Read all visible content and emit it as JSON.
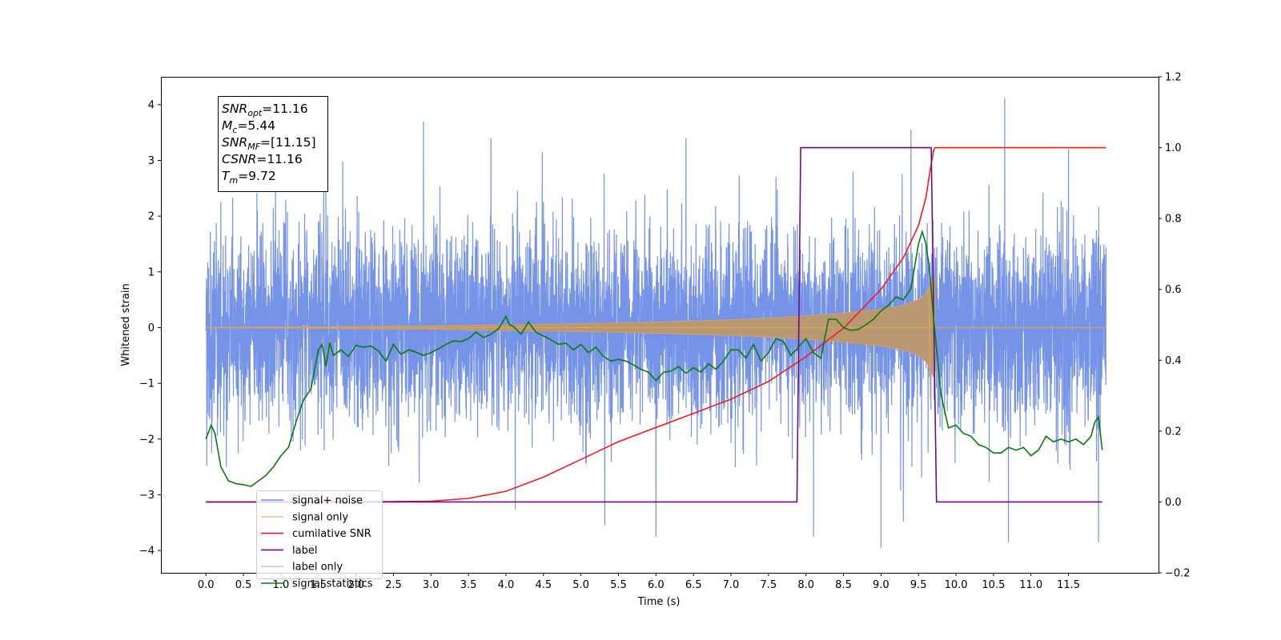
{
  "chart_data": {
    "type": "line",
    "title": "",
    "xlabel": "Time (s)",
    "ylabel": "Whitened strain",
    "xlim": [
      -0.6,
      12.7
    ],
    "ylim": [
      -4.4,
      4.5
    ],
    "ylim_right": [
      -0.2,
      1.2
    ],
    "x_ticks": [
      "0.0",
      "0.5",
      "1.0",
      "1.5",
      "2.0",
      "2.5",
      "3.0",
      "3.5",
      "4.0",
      "4.5",
      "5.0",
      "5.5",
      "6.0",
      "6.5",
      "7.0",
      "7.5",
      "8.0",
      "8.5",
      "9.0",
      "9.5",
      "10.0",
      "10.5",
      "11.0",
      "11.5"
    ],
    "y_ticks_left": [
      "4",
      "3",
      "2",
      "1",
      "0",
      "−1",
      "−2",
      "−3",
      "−4"
    ],
    "y_ticks_right": [
      "1.2",
      "1.0",
      "0.8",
      "0.6",
      "0.4",
      "0.2",
      "0.0",
      "−0.2"
    ],
    "grid": false,
    "legend_position": "lower-left",
    "annotation": [
      {
        "sym": "SNR",
        "sub": "opt",
        "val": "=11.16"
      },
      {
        "sym": "M",
        "sub": "c",
        "val": "=5.44"
      },
      {
        "sym": "SNR",
        "sub": "MF",
        "val": "=[11.15]"
      },
      {
        "sym": "CSNR",
        "sub": "",
        "val": "=11.16"
      },
      {
        "sym": "T",
        "sub": "m",
        "val": "=9.72"
      }
    ],
    "series": [
      {
        "name": "signal+ noise",
        "axis": "left",
        "color": "#6f8ee6",
        "x_range": [
          0.0,
          12.0
        ],
        "typical_amplitude": 1.8,
        "peak_values": [
          [
            0.2,
            2.25
          ],
          [
            1.6,
            2.7
          ],
          [
            2.9,
            3.7
          ],
          [
            3.8,
            3.4
          ],
          [
            6.4,
            3.4
          ],
          [
            9.0,
            3.5
          ],
          [
            9.4,
            3.55
          ],
          [
            10.65,
            4.12
          ],
          [
            11.5,
            3.2
          ],
          [
            6.0,
            -3.75
          ],
          [
            8.1,
            -3.75
          ],
          [
            9.0,
            -3.95
          ],
          [
            10.7,
            -3.85
          ],
          [
            11.9,
            -3.85
          ]
        ]
      },
      {
        "name": "signal only",
        "axis": "left",
        "color": "#d9a45a",
        "envelope": {
          "x": [
            0,
            1,
            2,
            3,
            4,
            5,
            6,
            7,
            7.5,
            8,
            8.5,
            9,
            9.3,
            9.5,
            9.6,
            9.65,
            9.7
          ],
          "amp": [
            0.005,
            0.01,
            0.02,
            0.03,
            0.05,
            0.07,
            0.1,
            0.14,
            0.17,
            0.21,
            0.26,
            0.33,
            0.4,
            0.5,
            0.62,
            0.72,
            0.9
          ]
        },
        "merger_time": 9.72
      },
      {
        "name": "cumilative SNR",
        "axis": "right",
        "color": "#ee1c1c",
        "x": [
          0,
          2,
          3,
          3.5,
          4,
          4.5,
          5,
          5.5,
          6,
          6.5,
          7,
          7.5,
          8,
          8.5,
          9,
          9.3,
          9.5,
          9.6,
          9.65,
          9.7,
          9.72,
          12.0
        ],
        "values": [
          0,
          0,
          0.002,
          0.01,
          0.03,
          0.07,
          0.12,
          0.17,
          0.21,
          0.25,
          0.29,
          0.34,
          0.41,
          0.49,
          0.6,
          0.69,
          0.78,
          0.86,
          0.93,
          0.99,
          1.0,
          1.0
        ]
      },
      {
        "name": "label",
        "axis": "right",
        "color": "#6d0f7b",
        "x": [
          0,
          7.88,
          7.93,
          9.67,
          9.74,
          11.95
        ],
        "values": [
          0,
          0,
          1,
          1,
          0,
          0
        ]
      },
      {
        "name": "label only",
        "axis": "right",
        "color": "#c8c8c8",
        "x": [],
        "values": []
      },
      {
        "name": "signal statistics",
        "axis": "left",
        "color": "#0b7a0b",
        "x": [
          0,
          0.07,
          0.12,
          0.2,
          0.3,
          0.4,
          0.5,
          0.6,
          0.7,
          0.8,
          0.9,
          1.0,
          1.1,
          1.2,
          1.3,
          1.4,
          1.5,
          1.55,
          1.6,
          1.65,
          1.7,
          1.8,
          1.9,
          2.0,
          2.1,
          2.2,
          2.3,
          2.4,
          2.5,
          2.6,
          2.7,
          2.8,
          2.9,
          3.0,
          3.1,
          3.2,
          3.3,
          3.4,
          3.5,
          3.6,
          3.7,
          3.8,
          3.9,
          4.0,
          4.05,
          4.1,
          4.2,
          4.3,
          4.4,
          4.45,
          4.5,
          4.6,
          4.7,
          4.8,
          4.9,
          5.0,
          5.1,
          5.2,
          5.3,
          5.4,
          5.5,
          5.6,
          5.7,
          5.8,
          5.9,
          6.0,
          6.1,
          6.2,
          6.3,
          6.4,
          6.5,
          6.6,
          6.7,
          6.8,
          6.9,
          7.0,
          7.1,
          7.2,
          7.3,
          7.4,
          7.5,
          7.6,
          7.7,
          7.8,
          7.9,
          8.0,
          8.1,
          8.2,
          8.3,
          8.4,
          8.5,
          8.6,
          8.7,
          8.8,
          8.9,
          9.0,
          9.1,
          9.2,
          9.3,
          9.4,
          9.5,
          9.55,
          9.6,
          9.65,
          9.7,
          9.8,
          9.9,
          10.0,
          10.1,
          10.2,
          10.3,
          10.4,
          10.5,
          10.6,
          10.7,
          10.8,
          10.9,
          11.0,
          11.1,
          11.2,
          11.3,
          11.4,
          11.5,
          11.6,
          11.7,
          11.8,
          11.85,
          11.9,
          11.95
        ],
        "values": [
          -2.0,
          -1.75,
          -1.9,
          -2.5,
          -2.75,
          -2.8,
          -2.82,
          -2.85,
          -2.75,
          -2.65,
          -2.5,
          -2.3,
          -2.15,
          -1.7,
          -1.3,
          -1.1,
          -0.4,
          -0.3,
          -0.7,
          -0.27,
          -0.5,
          -0.4,
          -0.52,
          -0.32,
          -0.35,
          -0.33,
          -0.42,
          -0.6,
          -0.3,
          -0.48,
          -0.4,
          -0.44,
          -0.5,
          -0.45,
          -0.38,
          -0.3,
          -0.24,
          -0.25,
          -0.2,
          -0.08,
          -0.18,
          -0.12,
          -0.02,
          0.2,
          0.05,
          0.02,
          -0.12,
          0.1,
          -0.08,
          -0.12,
          -0.15,
          -0.22,
          -0.3,
          -0.28,
          -0.4,
          -0.3,
          -0.45,
          -0.35,
          -0.52,
          -0.6,
          -0.57,
          -0.6,
          -0.67,
          -0.75,
          -0.8,
          -0.95,
          -0.8,
          -0.78,
          -0.7,
          -0.82,
          -0.72,
          -0.8,
          -0.65,
          -0.75,
          -0.6,
          -0.4,
          -0.4,
          -0.55,
          -0.3,
          -0.6,
          -0.45,
          -0.2,
          -0.25,
          -0.5,
          -0.35,
          -0.2,
          -0.45,
          -0.55,
          0.15,
          0.15,
          0.0,
          -0.05,
          -0.03,
          0.05,
          0.15,
          0.3,
          0.4,
          0.55,
          0.5,
          0.7,
          1.5,
          1.72,
          1.5,
          1.0,
          0.2,
          -1.2,
          -1.8,
          -1.75,
          -1.9,
          -1.95,
          -2.1,
          -2.15,
          -2.25,
          -2.25,
          -2.15,
          -2.2,
          -2.15,
          -2.3,
          -2.2,
          -1.95,
          -2.05,
          -2.0,
          -2.05,
          -2.0,
          -2.1,
          -1.95,
          -1.7,
          -1.6,
          -2.2
        ]
      }
    ]
  }
}
